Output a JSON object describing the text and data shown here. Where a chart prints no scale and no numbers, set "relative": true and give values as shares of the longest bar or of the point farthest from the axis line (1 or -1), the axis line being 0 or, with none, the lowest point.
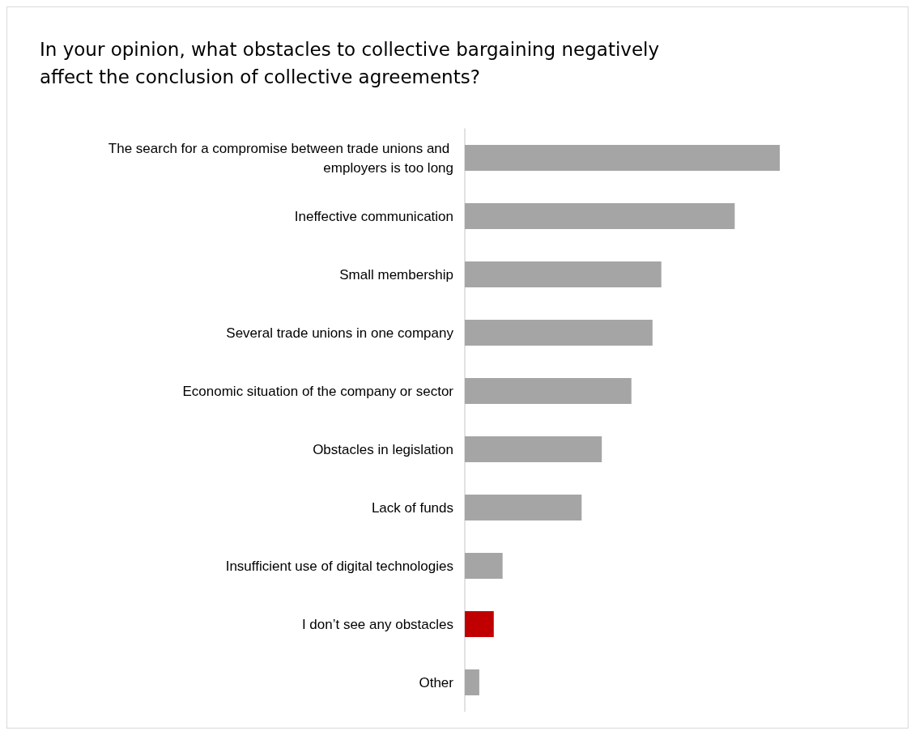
{
  "chart_data": {
    "type": "bar",
    "orientation": "horizontal",
    "relative": true,
    "title": "In your opinion, what obstacles to collective bargaining negatively affect the conclusion of collective agreements?",
    "categories": [
      "The search for a compromise between trade unions and employers is too long",
      "Ineffective communication",
      "Small membership",
      "Several trade unions in one company",
      "Economic situation of the company or sector",
      "Obstacles in legislation",
      "Lack of funds",
      "Insufficient use of digital technologies",
      "I don’t see any obstacles",
      "Other"
    ],
    "values": [
      1,
      0.857,
      0.624,
      0.596,
      0.529,
      0.435,
      0.371,
      0.12,
      0.092,
      0.046
    ],
    "colors": [
      "#a5a5a5",
      "#a5a5a5",
      "#a5a5a5",
      "#a5a5a5",
      "#a5a5a5",
      "#a5a5a5",
      "#a5a5a5",
      "#a5a5a5",
      "#c00000",
      "#a5a5a5"
    ],
    "grid": false,
    "legend": false
  }
}
